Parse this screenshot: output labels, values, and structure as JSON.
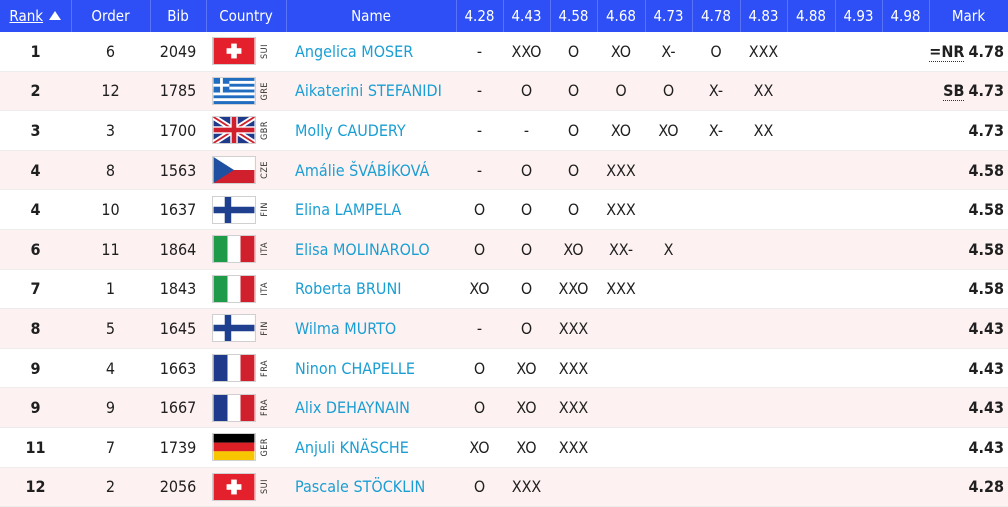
{
  "headers": {
    "rank": "Rank",
    "order": "Order",
    "bib": "Bib",
    "country": "Country",
    "name": "Name",
    "heights": [
      "4.28",
      "4.43",
      "4.58",
      "4.68",
      "4.73",
      "4.78",
      "4.83",
      "4.88",
      "4.93",
      "4.98"
    ],
    "mark": "Mark"
  },
  "rows": [
    {
      "rank": "1",
      "order": "6",
      "bib": "2049",
      "flag": "SUI",
      "code": "SUI",
      "name": "Angelica MOSER",
      "attempts": [
        "-",
        "XXO",
        "O",
        "XO",
        "X-",
        "O",
        "XXX",
        "",
        "",
        ""
      ],
      "badge": "=NR",
      "mark": "4.78"
    },
    {
      "rank": "2",
      "order": "12",
      "bib": "1785",
      "flag": "GRE",
      "code": "GRE",
      "name": "Aikaterini STEFANIDI",
      "attempts": [
        "-",
        "O",
        "O",
        "O",
        "O",
        "X-",
        "XX",
        "",
        "",
        ""
      ],
      "badge": "SB",
      "mark": "4.73"
    },
    {
      "rank": "3",
      "order": "3",
      "bib": "1700",
      "flag": "GBR",
      "code": "GBR",
      "name": "Molly CAUDERY",
      "attempts": [
        "-",
        "-",
        "O",
        "XO",
        "XO",
        "X-",
        "XX",
        "",
        "",
        ""
      ],
      "badge": "",
      "mark": "4.73"
    },
    {
      "rank": "4",
      "order": "8",
      "bib": "1563",
      "flag": "CZE",
      "code": "CZE",
      "name": "Amálie ŠVÁBÍKOVÁ",
      "attempts": [
        "-",
        "O",
        "O",
        "XXX",
        "",
        "",
        "",
        "",
        "",
        ""
      ],
      "badge": "",
      "mark": "4.58"
    },
    {
      "rank": "4",
      "order": "10",
      "bib": "1637",
      "flag": "FIN",
      "code": "FIN",
      "name": "Elina LAMPELA",
      "attempts": [
        "O",
        "O",
        "O",
        "XXX",
        "",
        "",
        "",
        "",
        "",
        ""
      ],
      "badge": "",
      "mark": "4.58"
    },
    {
      "rank": "6",
      "order": "11",
      "bib": "1864",
      "flag": "ITA",
      "code": "ITA",
      "name": "Elisa MOLINAROLO",
      "attempts": [
        "O",
        "O",
        "XO",
        "XX-",
        "X",
        "",
        "",
        "",
        "",
        ""
      ],
      "badge": "",
      "mark": "4.58"
    },
    {
      "rank": "7",
      "order": "1",
      "bib": "1843",
      "flag": "ITA",
      "code": "ITA",
      "name": "Roberta BRUNI",
      "attempts": [
        "XO",
        "O",
        "XXO",
        "XXX",
        "",
        "",
        "",
        "",
        "",
        ""
      ],
      "badge": "",
      "mark": "4.58"
    },
    {
      "rank": "8",
      "order": "5",
      "bib": "1645",
      "flag": "FIN",
      "code": "FIN",
      "name": "Wilma MURTO",
      "attempts": [
        "-",
        "O",
        "XXX",
        "",
        "",
        "",
        "",
        "",
        "",
        ""
      ],
      "badge": "",
      "mark": "4.43"
    },
    {
      "rank": "9",
      "order": "4",
      "bib": "1663",
      "flag": "FRA",
      "code": "FRA",
      "name": "Ninon CHAPELLE",
      "attempts": [
        "O",
        "XO",
        "XXX",
        "",
        "",
        "",
        "",
        "",
        "",
        ""
      ],
      "badge": "",
      "mark": "4.43"
    },
    {
      "rank": "9",
      "order": "9",
      "bib": "1667",
      "flag": "FRA",
      "code": "FRA",
      "name": "Alix DEHAYNAIN",
      "attempts": [
        "O",
        "XO",
        "XXX",
        "",
        "",
        "",
        "",
        "",
        "",
        ""
      ],
      "badge": "",
      "mark": "4.43"
    },
    {
      "rank": "11",
      "order": "7",
      "bib": "1739",
      "flag": "GER",
      "code": "GER",
      "name": "Anjuli KNÄSCHE",
      "attempts": [
        "XO",
        "XO",
        "XXX",
        "",
        "",
        "",
        "",
        "",
        "",
        ""
      ],
      "badge": "",
      "mark": "4.43"
    },
    {
      "rank": "12",
      "order": "2",
      "bib": "2056",
      "flag": "SUI",
      "code": "SUI",
      "name": "Pascale STÖCKLIN",
      "attempts": [
        "O",
        "XXX",
        "",
        "",
        "",
        "",
        "",
        "",
        "",
        ""
      ],
      "badge": "",
      "mark": "4.28"
    }
  ],
  "colors": {
    "header": "#2d4ff5",
    "name_link": "#1a9ed3",
    "alt_row": "#fdf2f1"
  }
}
